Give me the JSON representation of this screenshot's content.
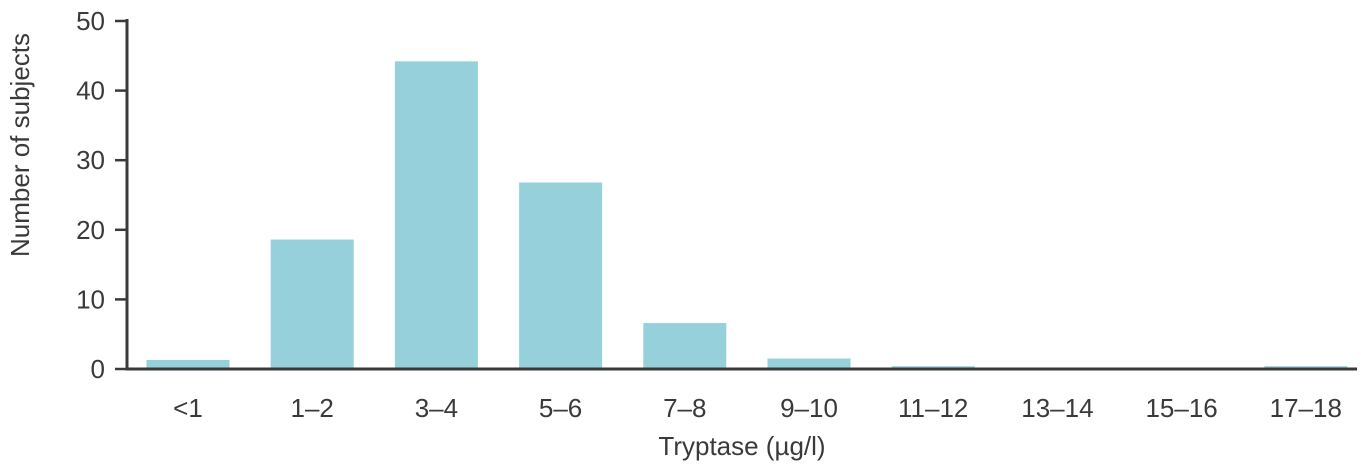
{
  "chart_data": {
    "type": "bar",
    "title": "",
    "xlabel": "Tryptase (µg/l)",
    "ylabel": "Number of subjects",
    "categories": [
      "<1",
      "1–2",
      "3–4",
      "5–6",
      "7–8",
      "9–10",
      "11–12",
      "13–14",
      "15–16",
      "17–18"
    ],
    "values": [
      1.3,
      18.6,
      44.2,
      26.8,
      6.6,
      1.5,
      0.4,
      0,
      0,
      0.4
    ],
    "ylim": [
      0,
      50
    ],
    "yticks": [
      0,
      10,
      20,
      30,
      40,
      50
    ],
    "grid": false,
    "legend": "none",
    "bar_color": "#96d1db"
  }
}
